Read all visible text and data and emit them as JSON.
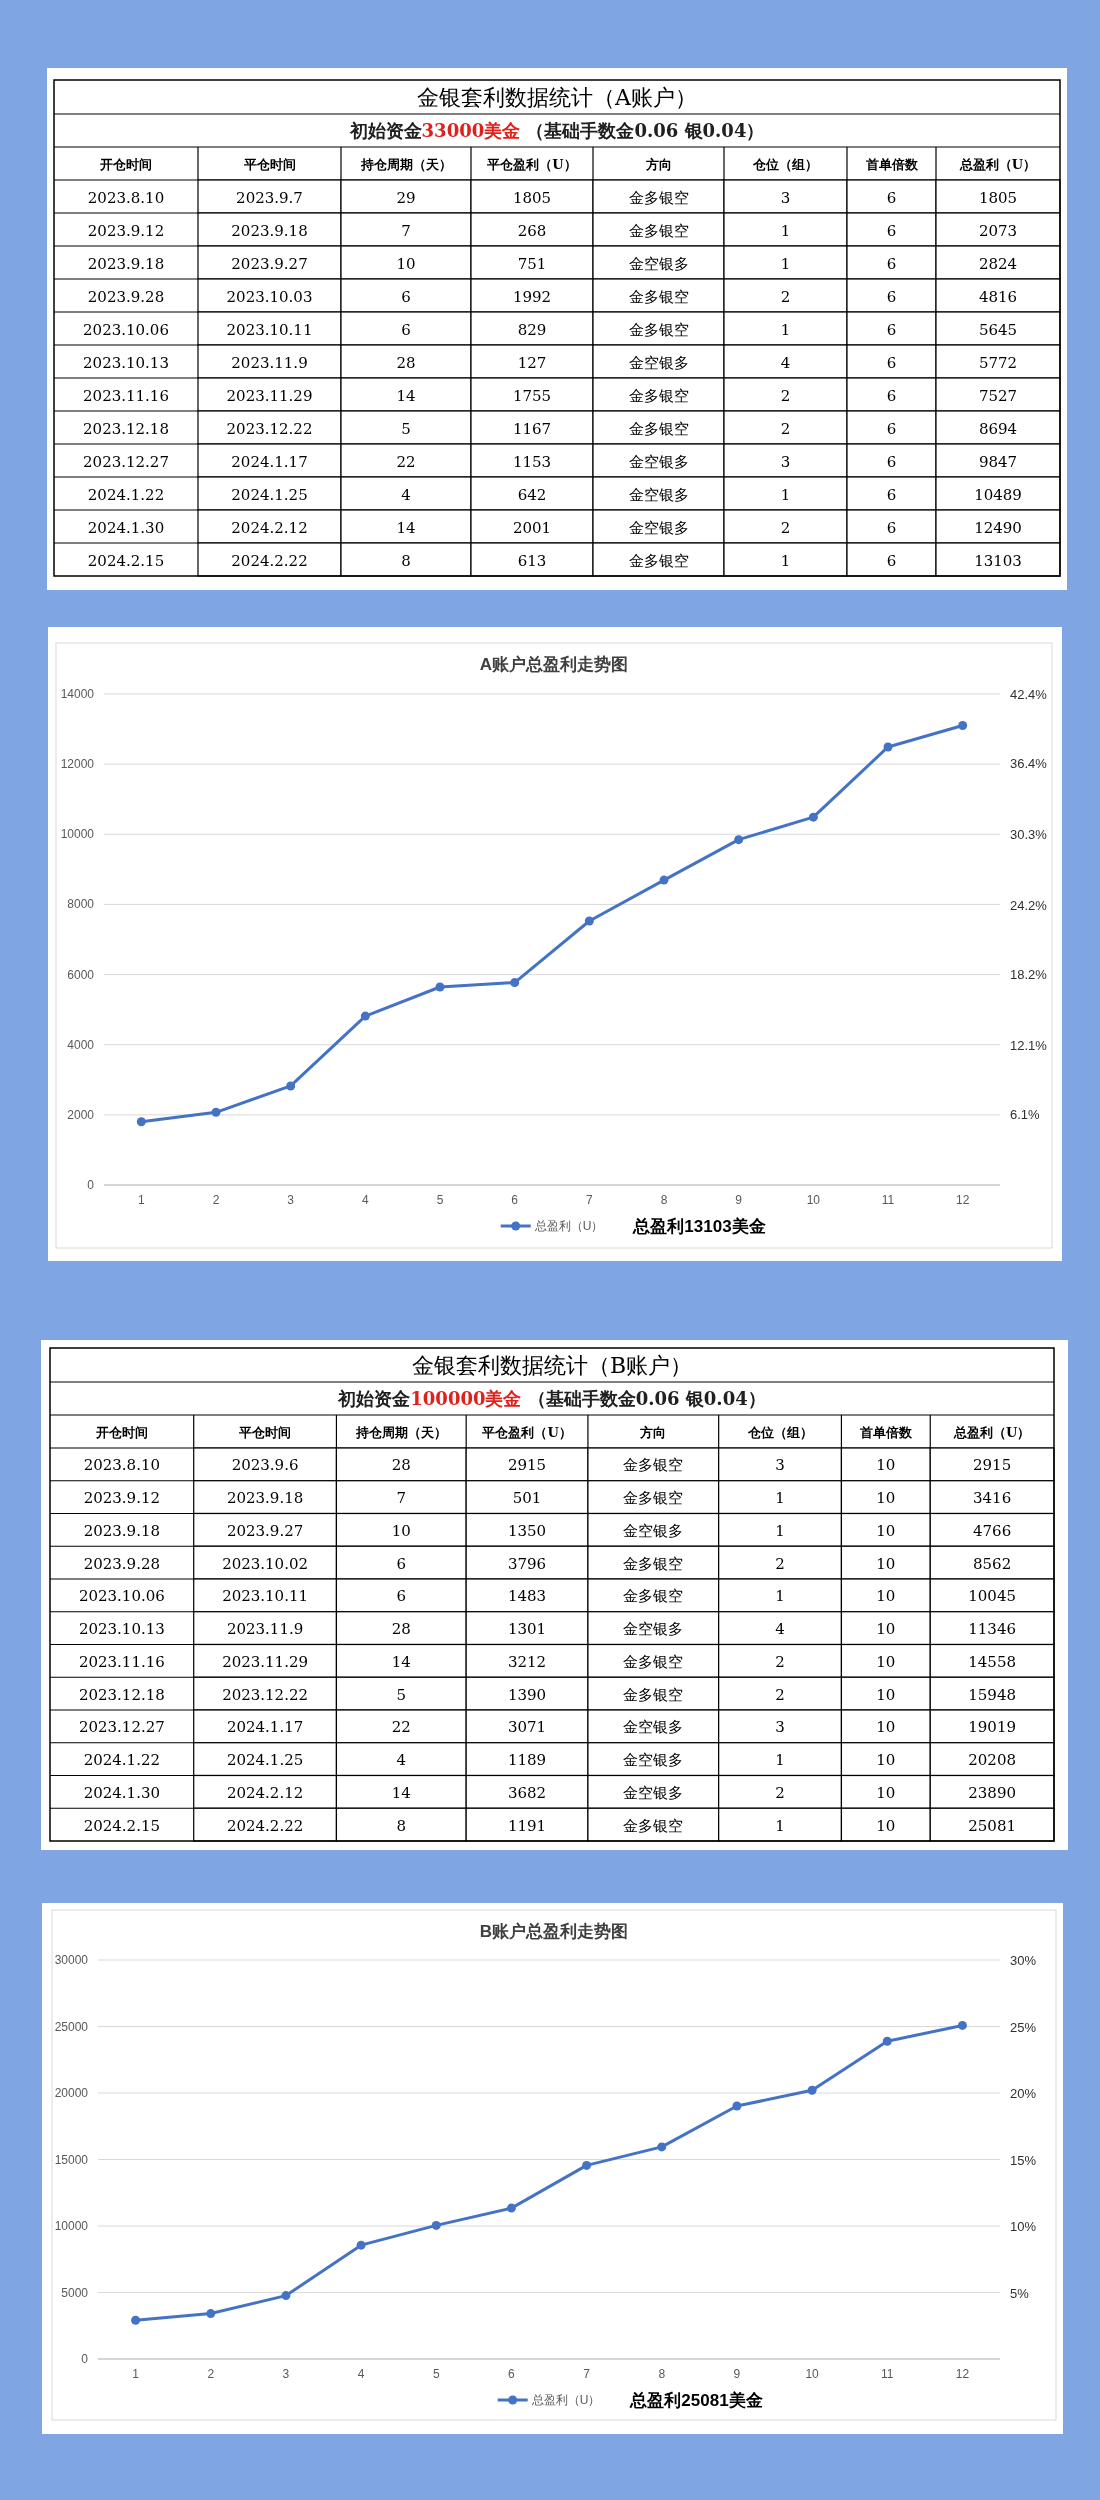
{
  "chart_data": [
    {
      "type": "heatmap",
      "title": "金银套利数据统计（A账户）",
      "subtitle": "初始资金**33000美金** （基础手数金0.06 银0.04）",
      "ylabel": "开仓时间",
      "categories": [
        "平仓时间",
        "持仓周期（天）",
        "平仓盈利（U）",
        "方向",
        "仓位（组）",
        "首单倍数",
        "总盈利（U）"
      ],
      "y_categories": [
        "2023.8.10",
        "2023.9.12",
        "2023.9.18",
        "2023.9.28",
        "2023.10.06",
        "2023.10.13",
        "2023.11.16",
        "2023.12.18",
        "2023.12.27",
        "2024.1.22",
        "2024.1.30",
        "2024.2.15"
      ],
      "cells": [
        [
          null,
          null,
          null,
          null,
          null,
          null,
          null
        ],
        [
          null,
          null,
          null,
          null,
          null,
          null,
          null
        ],
        [
          null,
          null,
          null,
          null,
          null,
          null,
          null
        ],
        [
          null,
          null,
          null,
          null,
          null,
          null,
          null
        ],
        [
          null,
          null,
          null,
          null,
          null,
          null,
          null
        ],
        [
          null,
          null,
          null,
          null,
          null,
          null,
          null
        ],
        [
          null,
          null,
          null,
          null,
          null,
          null,
          null
        ],
        [
          null,
          null,
          null,
          null,
          null,
          null,
          null
        ],
        [
          null,
          null,
          null,
          null,
          null,
          null,
          null
        ],
        [
          null,
          null,
          null,
          null,
          null,
          null,
          null
        ],
        [
          null,
          null,
          null,
          null,
          null,
          null,
          null
        ],
        [
          null,
          null,
          null,
          null,
          null,
          null,
          null
        ]
      ],
      "cell_labels": [
        [
          "2023.9.7",
          "29",
          "1805",
          "金多银空",
          "3",
          "6",
          "1805"
        ],
        [
          "2023.9.18",
          "7",
          "268",
          "金多银空",
          "1",
          "6",
          "2073"
        ],
        [
          "2023.9.27",
          "10",
          "751",
          "金空银多",
          "1",
          "6",
          "2824"
        ],
        [
          "2023.10.03",
          "6",
          "1992",
          "金多银空",
          "2",
          "6",
          "4816"
        ],
        [
          "2023.10.11",
          "6",
          "829",
          "金多银空",
          "1",
          "6",
          "5645"
        ],
        [
          "2023.11.9",
          "28",
          "127",
          "金空银多",
          "4",
          "6",
          "5772"
        ],
        [
          "2023.11.29",
          "14",
          "1755",
          "金多银空",
          "2",
          "6",
          "7527"
        ],
        [
          "2023.12.22",
          "5",
          "1167",
          "金多银空",
          "2",
          "6",
          "8694"
        ],
        [
          "2024.1.17",
          "22",
          "1153",
          "金空银多",
          "3",
          "6",
          "9847"
        ],
        [
          "2024.1.25",
          "4",
          "642",
          "金空银多",
          "1",
          "6",
          "10489"
        ],
        [
          "2024.2.12",
          "14",
          "2001",
          "金空银多",
          "2",
          "6",
          "12490"
        ],
        [
          "2024.2.22",
          "8",
          "613",
          "金多银空",
          "1",
          "6",
          "13103"
        ]
      ]
    },
    {
      "type": "line",
      "title": "A账户总盈利走势图",
      "x": [
        1,
        2,
        3,
        4,
        5,
        6,
        7,
        8,
        9,
        10,
        11,
        12
      ],
      "xlim": [
        0.5,
        12.5
      ],
      "xticks": [
        1,
        2,
        3,
        4,
        5,
        6,
        7,
        8,
        9,
        10,
        11,
        12
      ],
      "series": [
        {
          "name": "总盈利（U）",
          "color": "#4472c4",
          "values": [
            1805,
            2073,
            2824,
            4816,
            5645,
            5772,
            7527,
            8694,
            9847,
            10489,
            12490,
            13103
          ]
        }
      ],
      "ylim": [
        0,
        14000
      ],
      "yticks": [
        0,
        2000,
        4000,
        6000,
        8000,
        10000,
        12000,
        14000
      ],
      "y2lim": [
        0,
        42.4
      ],
      "y2ticks": [
        {
          "value": 6.1,
          "label": "6.1%"
        },
        {
          "value": 12.1,
          "label": "12.1%"
        },
        {
          "value": 18.2,
          "label": "18.2%"
        },
        {
          "value": 24.2,
          "label": "24.2%"
        },
        {
          "value": 30.3,
          "label": "30.3%"
        },
        {
          "value": 36.4,
          "label": "36.4%"
        },
        {
          "value": 42.4,
          "label": "42.4%"
        }
      ],
      "grid": "y",
      "legend": "bottom",
      "marker": "circle",
      "annotations": [
        "总盈利13103美金"
      ]
    },
    {
      "type": "heatmap",
      "title": "金银套利数据统计（B账户）",
      "subtitle": "初始资金**100000美金** （基础手数金0.06 银0.04）",
      "ylabel": "开仓时间",
      "categories": [
        "平仓时间",
        "持仓周期（天）",
        "平仓盈利（U）",
        "方向",
        "仓位（组）",
        "首单倍数",
        "总盈利（U）"
      ],
      "y_categories": [
        "2023.8.10",
        "2023.9.12",
        "2023.9.18",
        "2023.9.28",
        "2023.10.06",
        "2023.10.13",
        "2023.11.16",
        "2023.12.18",
        "2023.12.27",
        "2024.1.22",
        "2024.1.30",
        "2024.2.15"
      ],
      "cells": [
        [
          null,
          null,
          null,
          null,
          null,
          null,
          null
        ],
        [
          null,
          null,
          null,
          null,
          null,
          null,
          null
        ],
        [
          null,
          null,
          null,
          null,
          null,
          null,
          null
        ],
        [
          null,
          null,
          null,
          null,
          null,
          null,
          null
        ],
        [
          null,
          null,
          null,
          null,
          null,
          null,
          null
        ],
        [
          null,
          null,
          null,
          null,
          null,
          null,
          null
        ],
        [
          null,
          null,
          null,
          null,
          null,
          null,
          null
        ],
        [
          null,
          null,
          null,
          null,
          null,
          null,
          null
        ],
        [
          null,
          null,
          null,
          null,
          null,
          null,
          null
        ],
        [
          null,
          null,
          null,
          null,
          null,
          null,
          null
        ],
        [
          null,
          null,
          null,
          null,
          null,
          null,
          null
        ],
        [
          null,
          null,
          null,
          null,
          null,
          null,
          null
        ]
      ],
      "cell_labels": [
        [
          "2023.9.6",
          "28",
          "2915",
          "金多银空",
          "3",
          "10",
          "2915"
        ],
        [
          "2023.9.18",
          "7",
          "501",
          "金多银空",
          "1",
          "10",
          "3416"
        ],
        [
          "2023.9.27",
          "10",
          "1350",
          "金空银多",
          "1",
          "10",
          "4766"
        ],
        [
          "2023.10.02",
          "6",
          "3796",
          "金多银空",
          "2",
          "10",
          "8562"
        ],
        [
          "2023.10.11",
          "6",
          "1483",
          "金多银空",
          "1",
          "10",
          "10045"
        ],
        [
          "2023.11.9",
          "28",
          "1301",
          "金空银多",
          "4",
          "10",
          "11346"
        ],
        [
          "2023.11.29",
          "14",
          "3212",
          "金多银空",
          "2",
          "10",
          "14558"
        ],
        [
          "2023.12.22",
          "5",
          "1390",
          "金多银空",
          "2",
          "10",
          "15948"
        ],
        [
          "2024.1.17",
          "22",
          "3071",
          "金空银多",
          "3",
          "10",
          "19019"
        ],
        [
          "2024.1.25",
          "4",
          "1189",
          "金空银多",
          "1",
          "10",
          "20208"
        ],
        [
          "2024.2.12",
          "14",
          "3682",
          "金空银多",
          "2",
          "10",
          "23890"
        ],
        [
          "2024.2.22",
          "8",
          "1191",
          "金多银空",
          "1",
          "10",
          "25081"
        ]
      ]
    },
    {
      "type": "line",
      "title": "B账户总盈利走势图",
      "x": [
        1,
        2,
        3,
        4,
        5,
        6,
        7,
        8,
        9,
        10,
        11,
        12
      ],
      "xlim": [
        0.5,
        12.5
      ],
      "xticks": [
        1,
        2,
        3,
        4,
        5,
        6,
        7,
        8,
        9,
        10,
        11,
        12
      ],
      "series": [
        {
          "name": "总盈利（U）",
          "color": "#4472c4",
          "values": [
            2915,
            3416,
            4766,
            8562,
            10045,
            11346,
            14558,
            15948,
            19019,
            20208,
            23890,
            25081
          ]
        }
      ],
      "ylim": [
        0,
        30000
      ],
      "yticks": [
        0,
        5000,
        10000,
        15000,
        20000,
        25000,
        30000
      ],
      "y2lim": [
        0,
        30
      ],
      "y2ticks": [
        {
          "value": 5,
          "label": "5%"
        },
        {
          "value": 10,
          "label": "10%"
        },
        {
          "value": 15,
          "label": "15%"
        },
        {
          "value": 20,
          "label": "20%"
        },
        {
          "value": 25,
          "label": "25%"
        },
        {
          "value": 30,
          "label": "30%"
        }
      ],
      "grid": "y",
      "legend": "bottom",
      "marker": "circle",
      "annotations": [
        "总盈利25081美金"
      ]
    }
  ]
}
